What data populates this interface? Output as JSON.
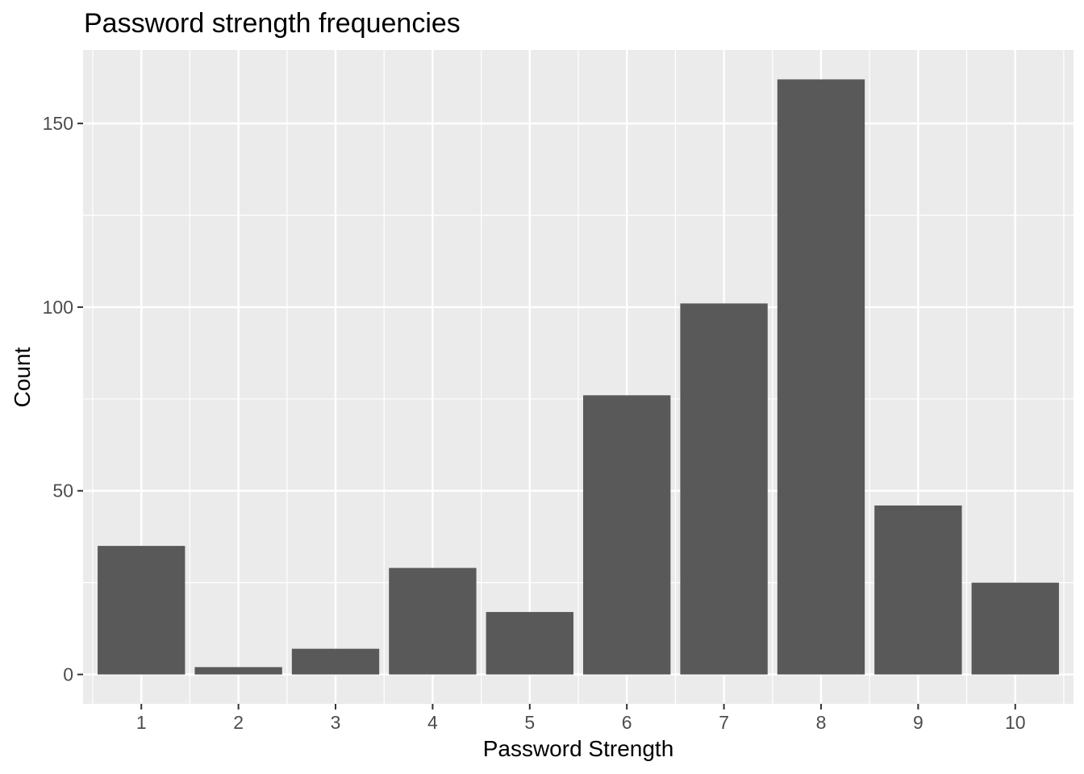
{
  "chart_data": {
    "type": "bar",
    "title": "Password strength frequencies",
    "xlabel": "Password Strength",
    "ylabel": "Count",
    "categories": [
      "1",
      "2",
      "3",
      "4",
      "5",
      "6",
      "7",
      "8",
      "9",
      "10"
    ],
    "values": [
      35,
      2,
      7,
      29,
      17,
      76,
      101,
      162,
      46,
      25
    ],
    "ylim": [
      -8,
      170
    ],
    "yticks": [
      0,
      50,
      100,
      150
    ],
    "grid": true,
    "colors": {
      "bar": "#595959",
      "panel": "#ebebeb",
      "gridline": "#ffffff",
      "tick_text": "#4d4d4d",
      "text": "#000000"
    }
  }
}
